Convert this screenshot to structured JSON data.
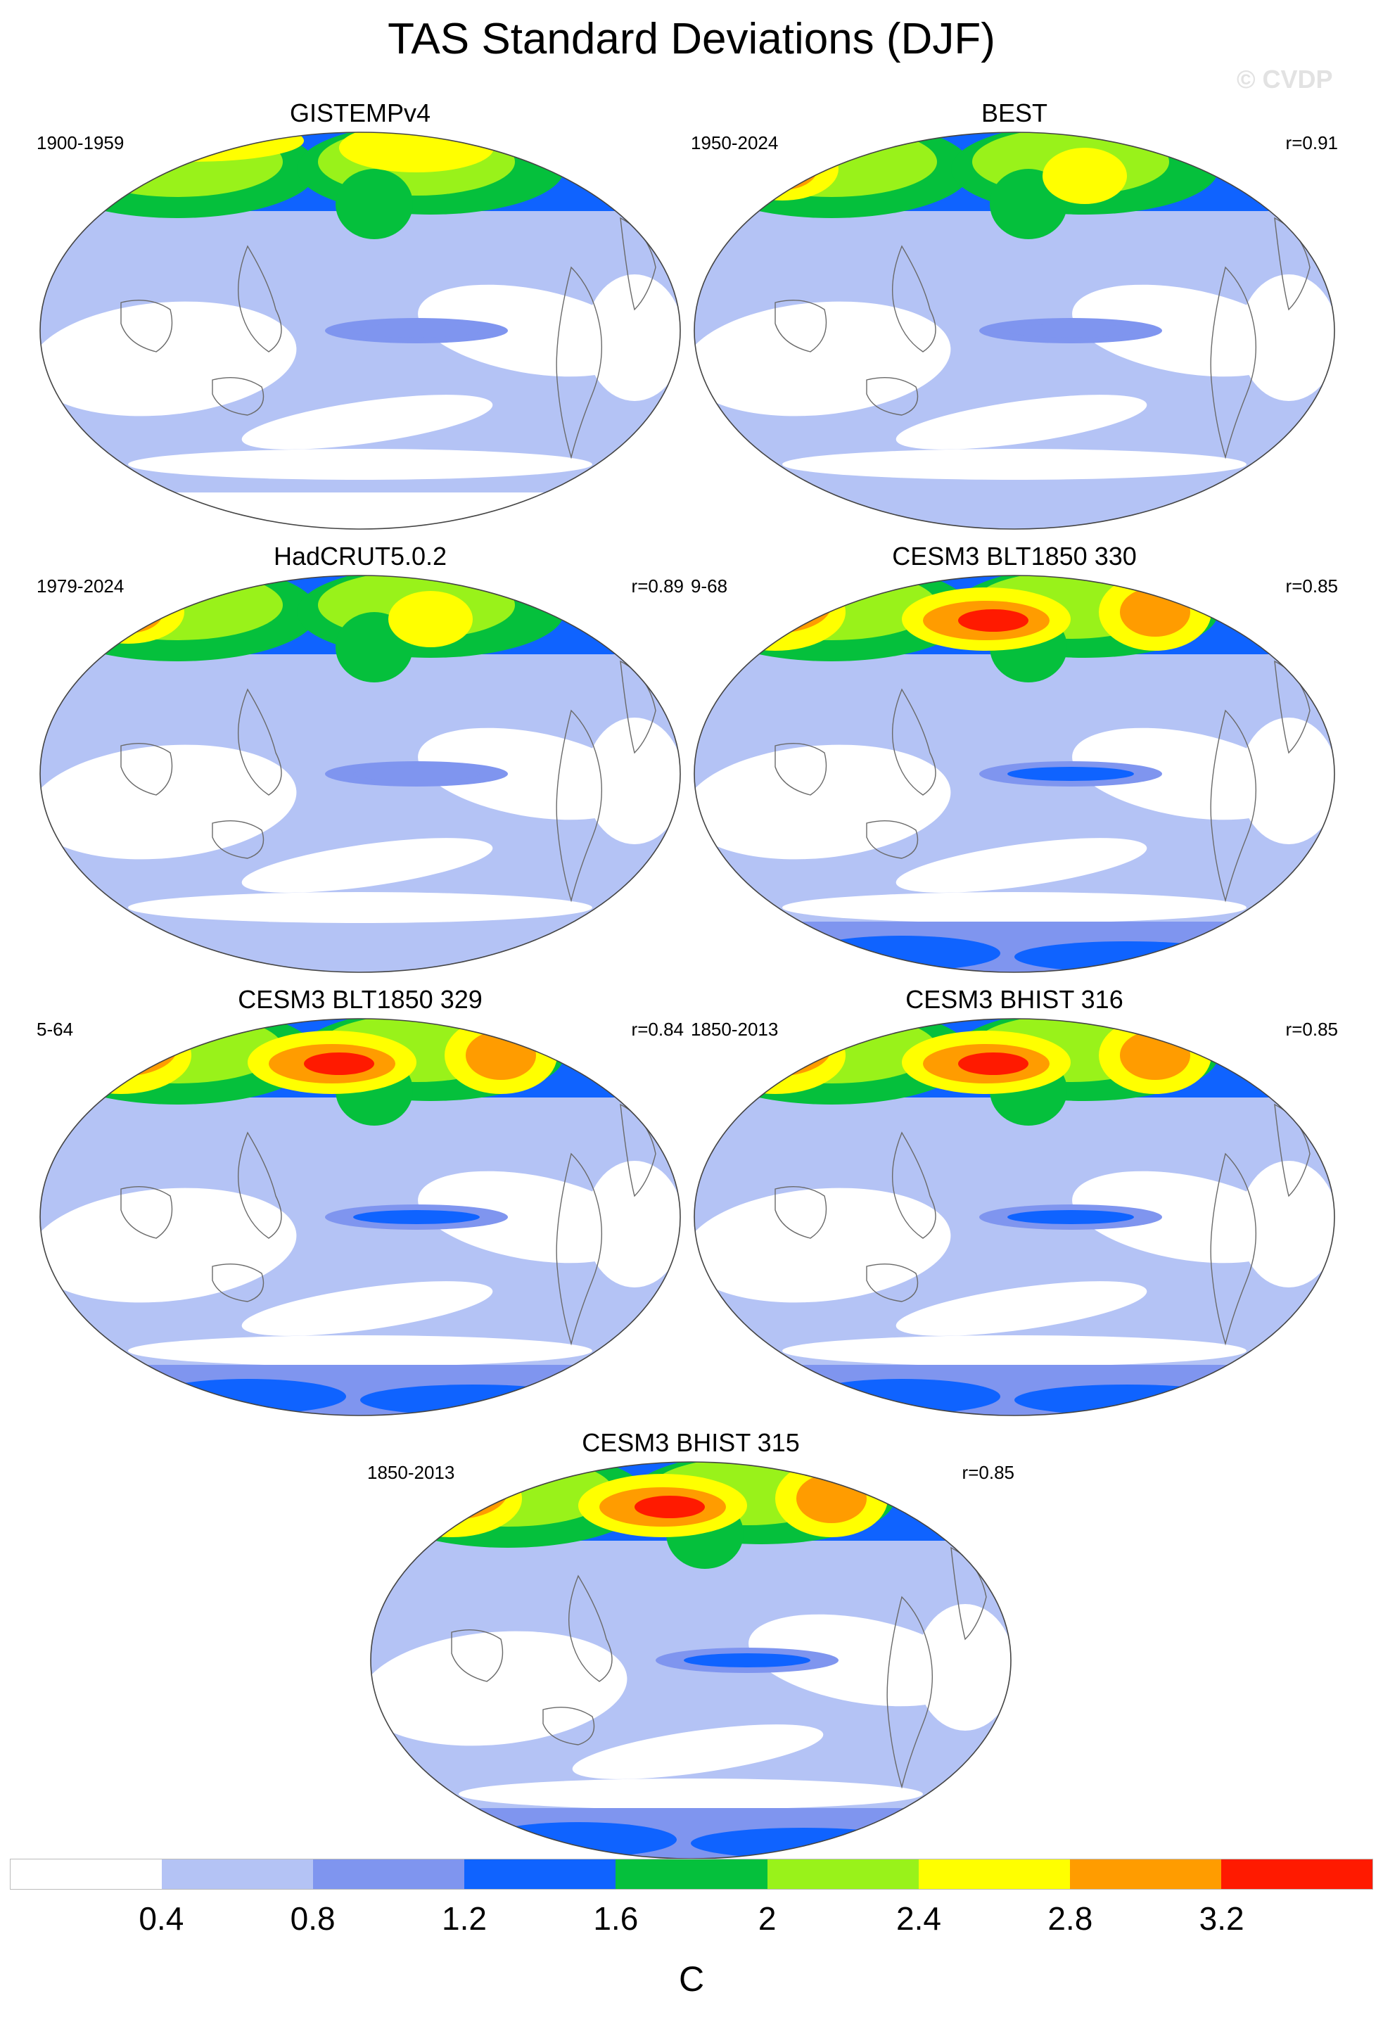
{
  "title": "TAS Standard Deviations (DJF)",
  "watermark": "© CVDP",
  "panels": [
    {
      "title": "GISTEMPv4",
      "period": "1900-1959",
      "correlation": ""
    },
    {
      "title": "BEST",
      "period": "1950-2024",
      "correlation": "r=0.91"
    },
    {
      "title": "HadCRUT5.0.2",
      "period": "1979-2024",
      "correlation": "r=0.89"
    },
    {
      "title": "CESM3 BLT1850 330",
      "period": "9-68",
      "correlation": "r=0.85"
    },
    {
      "title": "CESM3 BLT1850 329",
      "period": "5-64",
      "correlation": "r=0.84"
    },
    {
      "title": "CESM3 BHIST 316",
      "period": "1850-2013",
      "correlation": "r=0.85"
    },
    {
      "title": "CESM3 BHIST 315",
      "period": "1850-2013",
      "correlation": "r=0.85"
    }
  ],
  "colorbar": {
    "colors": [
      "#ffffff",
      "#b4c3f5",
      "#7f95ef",
      "#0f63ff",
      "#05c03c",
      "#99f21a",
      "#ffff00",
      "#ff9c00",
      "#ff1a00"
    ],
    "labels": [
      "0.4",
      "0.8",
      "1.2",
      "1.6",
      "2",
      "2.4",
      "2.8",
      "3.2"
    ],
    "units": "C"
  },
  "colors": {
    "ocean_default": "#b4c3f5",
    "low": "#ffffff",
    "coast": "#6a6a6a"
  }
}
